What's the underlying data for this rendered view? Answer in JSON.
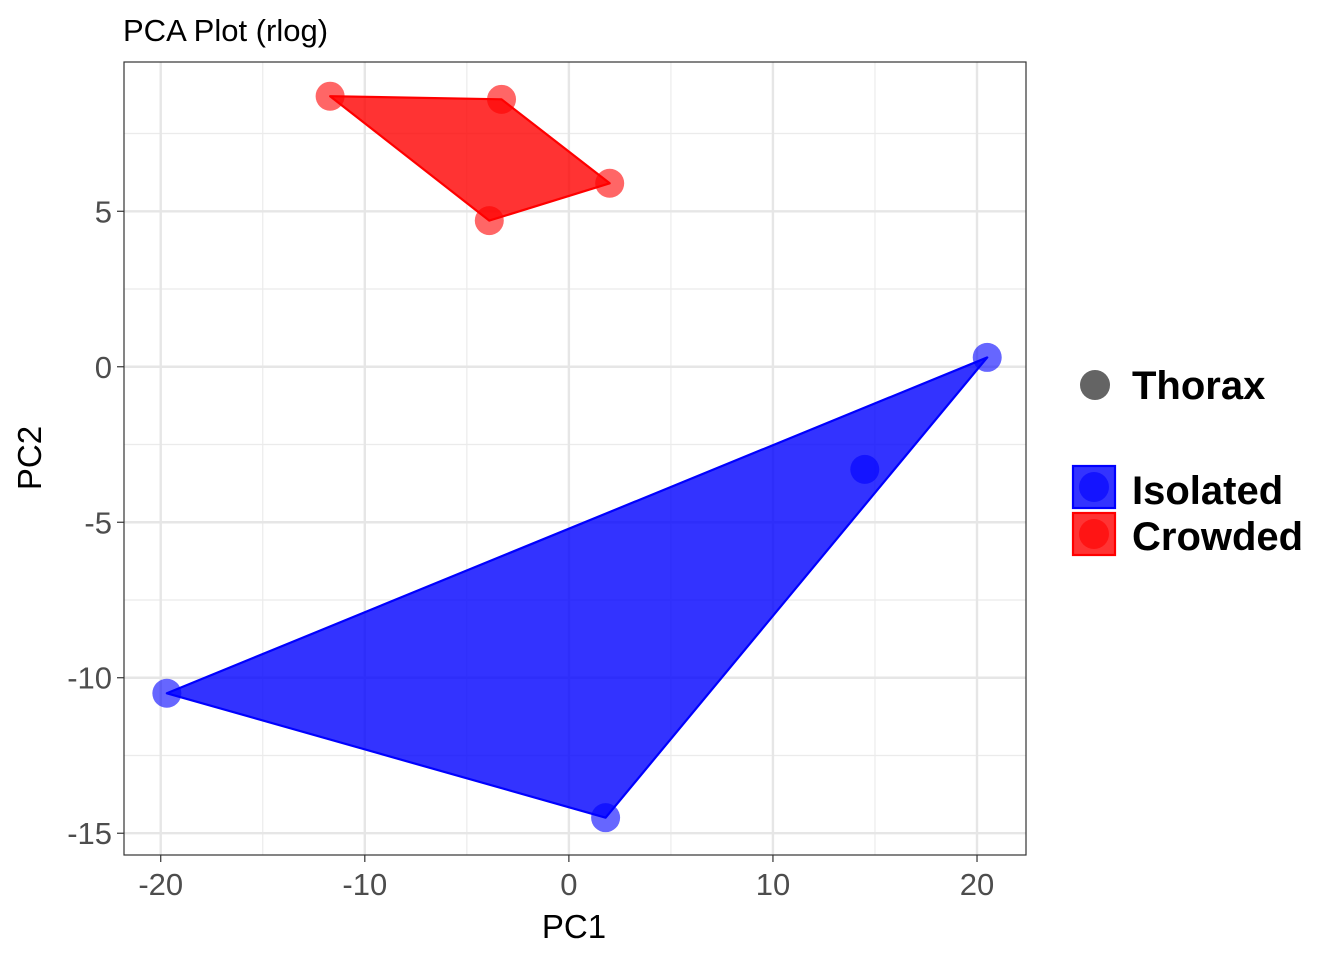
{
  "chart_data": {
    "type": "scatter",
    "title": "PCA Plot (rlog)",
    "xlabel": "PC1",
    "ylabel": "PC2",
    "xlim": [
      -21.8,
      22.4
    ],
    "ylim": [
      -15.7,
      9.8
    ],
    "xticks": [
      -20,
      -10,
      0,
      10,
      20
    ],
    "xtick_labels": [
      "-20",
      "-10",
      "0",
      "10",
      "20"
    ],
    "yticks": [
      -15,
      -10,
      -5,
      0,
      5
    ],
    "ytick_labels": [
      "-15",
      "-10",
      "-5",
      "0",
      "5"
    ],
    "grid": true,
    "legend_position": "right",
    "hulls": "convex hull polygon per group",
    "shape_legend": {
      "label": "Thorax",
      "color": "#646464"
    },
    "series": [
      {
        "name": "Isolated",
        "color": "#0000ff",
        "points": [
          {
            "x": -19.7,
            "y": -10.5
          },
          {
            "x": 1.8,
            "y": -14.5
          },
          {
            "x": 14.5,
            "y": -3.3
          },
          {
            "x": 20.5,
            "y": 0.3
          }
        ]
      },
      {
        "name": "Crowded",
        "color": "#ff0000",
        "points": [
          {
            "x": -11.7,
            "y": 8.7
          },
          {
            "x": -3.3,
            "y": 8.6
          },
          {
            "x": 2.0,
            "y": 5.9
          },
          {
            "x": -3.9,
            "y": 4.7
          }
        ]
      }
    ]
  }
}
